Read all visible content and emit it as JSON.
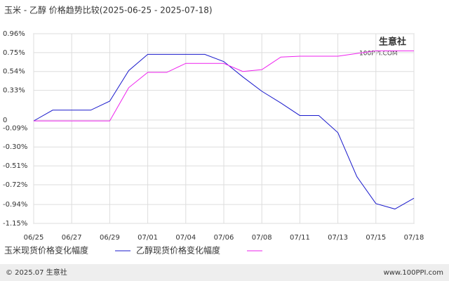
{
  "chart_data": {
    "type": "line",
    "title": "玉米 - 乙醇 价格趋势比较(2025-06-25 - 2025-07-18)",
    "categories": [
      "06/25",
      null,
      "06/27",
      null,
      "06/29",
      null,
      "07/01",
      null,
      "07/04",
      null,
      "07/06",
      null,
      "07/08",
      null,
      "07/11",
      null,
      "07/13",
      null,
      "07/15",
      null,
      "07/18"
    ],
    "series": [
      {
        "name": "玉米现货价格变化幅度",
        "color": "#1a1acc",
        "values": [
          -0.01,
          0.11,
          0.11,
          0.11,
          0.21,
          0.55,
          0.73,
          0.73,
          0.73,
          0.73,
          0.65,
          0.48,
          0.32,
          0.19,
          0.05,
          0.05,
          -0.14,
          -0.63,
          -0.93,
          -0.99,
          -0.87
        ]
      },
      {
        "name": "乙醇现货价格变化幅度",
        "color": "#ee22ee",
        "values": [
          -0.01,
          -0.01,
          -0.01,
          -0.01,
          -0.01,
          0.36,
          0.53,
          0.53,
          0.63,
          0.63,
          0.63,
          0.54,
          0.56,
          0.7,
          0.71,
          0.71,
          0.71,
          0.74,
          0.77,
          0.77,
          0.77
        ]
      }
    ],
    "ylim": [
      -1.15,
      0.96
    ],
    "yticks": [
      {
        "value": 0.96,
        "label": "0.96%"
      },
      {
        "value": 0.75,
        "label": "0.75%"
      },
      {
        "value": 0.54,
        "label": "0.54%"
      },
      {
        "value": 0.33,
        "label": "0.33%"
      },
      0,
      {
        "value": -0.09,
        "label": "-0.09%"
      },
      {
        "value": -0.3,
        "label": "-0.30%"
      },
      {
        "value": -0.51,
        "label": "-0.51%"
      },
      {
        "value": -0.72,
        "label": "-0.72%"
      },
      {
        "value": -0.94,
        "label": "-0.94%"
      },
      {
        "value": -1.15,
        "label": "-1.15%"
      }
    ],
    "grid": true,
    "watermark": [
      "生意社",
      "100PPI.COM"
    ],
    "footer_left": "© 2025.07 生意社",
    "footer_right": "www.100PPI.com"
  }
}
